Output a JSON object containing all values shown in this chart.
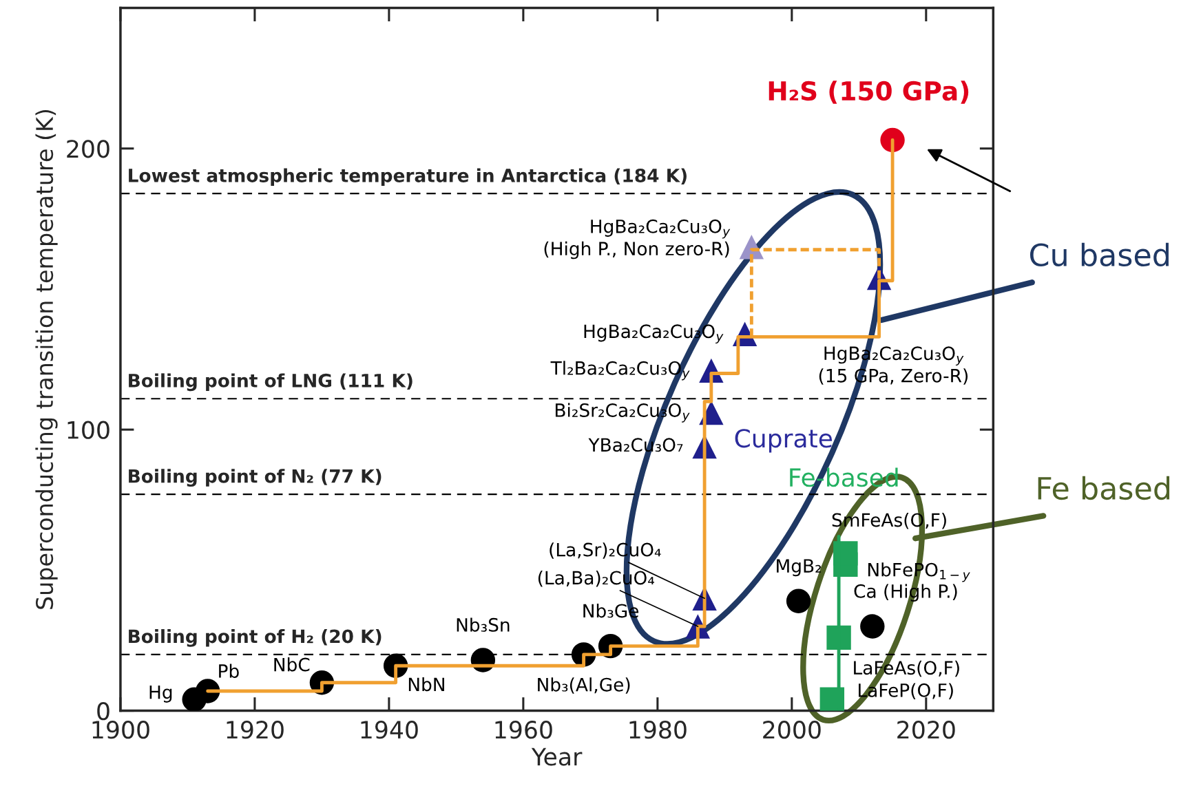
{
  "chart_data": {
    "type": "scatter",
    "xlabel": "Year",
    "ylabel": "Superconducting transition temperature (K)",
    "xlim": [
      1900,
      2030
    ],
    "xticks": [
      1900,
      1920,
      1940,
      1960,
      1980,
      2000,
      2020
    ],
    "ylim": [
      0,
      250
    ],
    "yticks": [
      0,
      100,
      200
    ],
    "grid": false,
    "legend": false,
    "series": [
      {
        "type": "line",
        "color": "#f0a030",
        "line_style": "solid",
        "marker": "none",
        "x": [
          1913,
          1930,
          1930,
          1941,
          1941,
          1969,
          1969,
          1973,
          1973,
          1986,
          1986,
          1987,
          1987,
          1988,
          1988,
          1992,
          1992,
          2013,
          2013,
          2015,
          2015
        ],
        "values": [
          7,
          7,
          10,
          10,
          16,
          16,
          20,
          20,
          23,
          23,
          30,
          30,
          110,
          110,
          120,
          120,
          133,
          133,
          153,
          153,
          203
        ]
      },
      {
        "type": "line",
        "color": "#f0a030",
        "line_style": "dashed",
        "marker": "none",
        "x": [
          1994,
          1994,
          2013,
          2013
        ],
        "values": [
          133,
          164,
          164,
          153
        ]
      },
      {
        "type": "line",
        "color": "#1fa35a",
        "line_style": "solid",
        "marker": "none",
        "x": [
          2007,
          2007
        ],
        "values": [
          1,
          62
        ]
      },
      {
        "color": "#000000",
        "marker": "circle",
        "x": [
          1911,
          1913,
          1930,
          1941,
          1954,
          1969,
          1973,
          2001,
          2012
        ],
        "values": [
          4,
          7,
          10,
          16,
          18,
          20,
          23,
          39,
          30
        ]
      },
      {
        "color": "#1f1f8c",
        "marker": "triangle",
        "x": [
          1986,
          1987,
          1987,
          1988,
          1988,
          1993,
          2013
        ],
        "values": [
          30,
          40,
          94,
          106,
          121,
          134,
          154
        ]
      },
      {
        "color": "#9b93c9",
        "marker": "triangle",
        "x": [
          1994
        ],
        "values": [
          165
        ]
      },
      {
        "color": "#1fa35a",
        "marker": "square",
        "x": [
          2006,
          2007,
          2008,
          2008
        ],
        "values": [
          4,
          26,
          52,
          56
        ]
      },
      {
        "color": "#e0001b",
        "marker": "circle",
        "x": [
          2015
        ],
        "values": [
          203
        ]
      }
    ],
    "ref_lines": [
      {
        "axis": "y",
        "value": 184,
        "label": "Lowest atmospheric temperature in Antarctica (184 K)",
        "color": "#000000",
        "line_style": "dashed"
      },
      {
        "axis": "y",
        "value": 111,
        "label": "Boiling point of LNG (111 K)",
        "color": "#000000",
        "line_style": "dashed"
      },
      {
        "axis": "y",
        "value": 77,
        "label": "Boiling point of N₂ (77 K)",
        "color": "#000000",
        "line_style": "dashed"
      },
      {
        "axis": "y",
        "value": 20,
        "label": "Boiling point of H₂ (20 K)",
        "color": "#000000",
        "line_style": "dashed"
      }
    ],
    "annotations": [
      {
        "text": "Hg",
        "x": 1911,
        "y": 4
      },
      {
        "text": "Pb",
        "x": 1913,
        "y": 7
      },
      {
        "text": "NbC",
        "x": 1930,
        "y": 10
      },
      {
        "text": "NbN",
        "x": 1941,
        "y": 16
      },
      {
        "text": "Nb₃Sn",
        "x": 1954,
        "y": 18
      },
      {
        "text": "Nb₃(Al,Ge)",
        "x": 1969,
        "y": 20
      },
      {
        "text": "Nb₃Ge",
        "x": 1973,
        "y": 23
      },
      {
        "text": "(La,Ba)₂CuO₄",
        "x": 1986,
        "y": 30
      },
      {
        "text": "(La,Sr)₂CuO₄",
        "x": 1987,
        "y": 40
      },
      {
        "text": "YBa₂Cu₃O₇",
        "x": 1987,
        "y": 94
      },
      {
        "text": "Bi₂Sr₂Ca₂Cu₃O$_{y}$",
        "x": 1988,
        "y": 106
      },
      {
        "text": "Tl₂Ba₂Ca₂Cu₃O$_{y}$",
        "x": 1988,
        "y": 121
      },
      {
        "text": "HgBa₂Ca₂Cu₃O$_{y}$",
        "x": 1993,
        "y": 134
      },
      {
        "text": "HgBa₂Ca₂Cu₃O$_{y}$\n(High P., Non zero-R)",
        "x": 1994,
        "y": 165
      },
      {
        "text": "HgBa₂Ca₂Cu₃O$_{y}$\n(15 GPa, Zero-R)",
        "x": 2013,
        "y": 133
      },
      {
        "text": "MgB₂",
        "x": 2001,
        "y": 39
      },
      {
        "text": "SmFeAs(O,F)",
        "x": 2008,
        "y": 56
      },
      {
        "text": "NbFePO$_{1−y}$",
        "x": 2008,
        "y": 52
      },
      {
        "text": "Ca (High P.)",
        "x": 2012,
        "y": 30
      },
      {
        "text": "LaFeAs(O,F)",
        "x": 2007,
        "y": 26
      },
      {
        "text": "LaFeP(O,F)",
        "x": 2006,
        "y": 4
      },
      {
        "text": "H₂S (150 GPa)",
        "x": 2015,
        "y": 203
      },
      "Cuprate",
      "Fe-based",
      "Cu based",
      "Fe based"
    ]
  }
}
